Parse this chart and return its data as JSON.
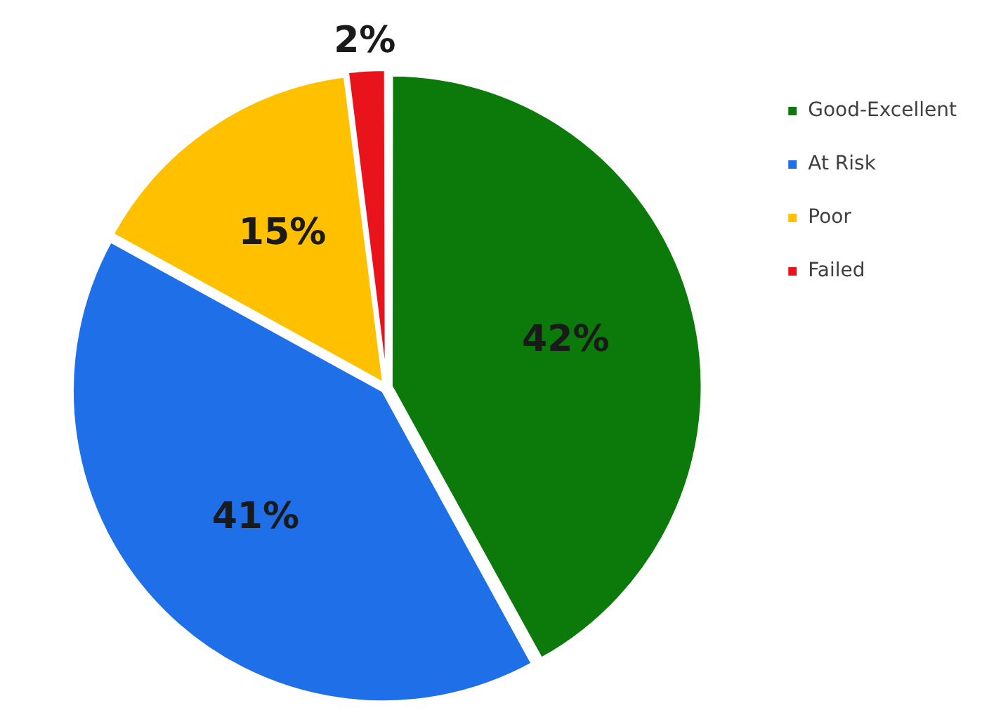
{
  "chart_data": {
    "type": "pie",
    "categories": [
      "Good-Excellent",
      "At Risk",
      "Poor",
      "Failed"
    ],
    "values": [
      42,
      41,
      15,
      2
    ],
    "colors": [
      "#0b7a0b",
      "#1f6fe8",
      "#ffc000",
      "#e8131b"
    ],
    "value_labels": [
      "42%",
      "41%",
      "15%",
      "2%"
    ],
    "legend": "top right"
  }
}
